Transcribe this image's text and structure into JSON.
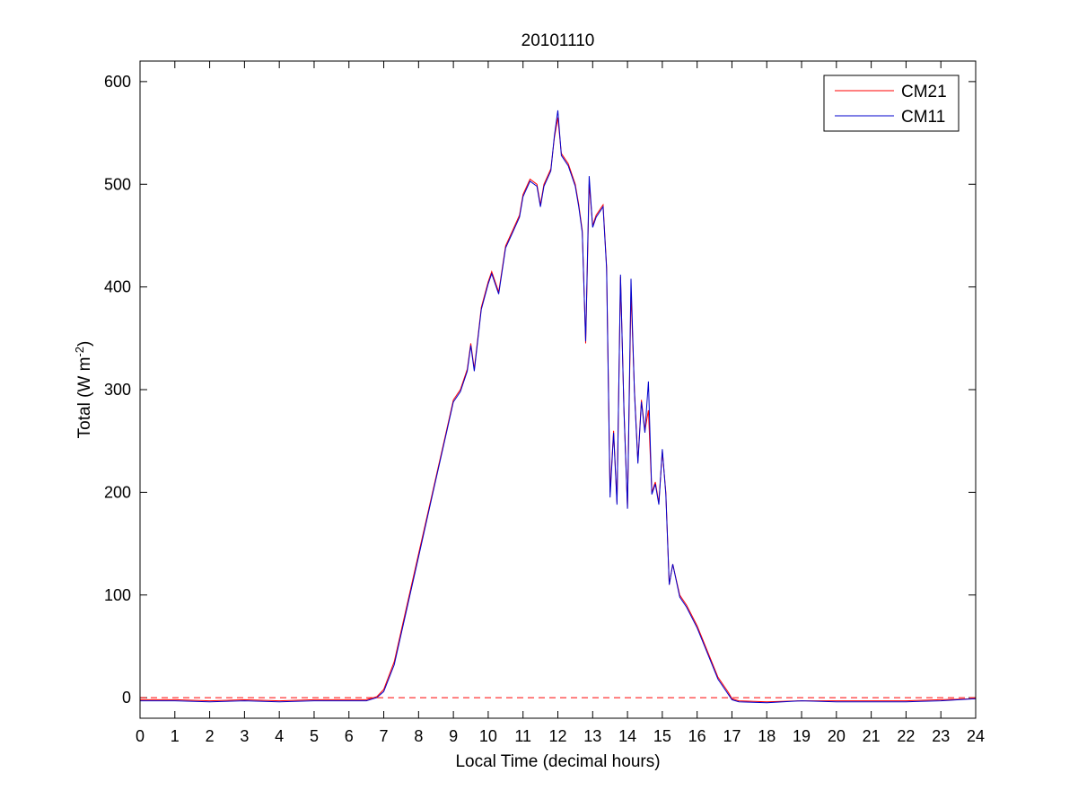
{
  "chart_data": {
    "type": "line",
    "title": "20101110",
    "xlabel": "Local Time (decimal hours)",
    "ylabel": {
      "main": "Total (W m",
      "sup": "-2",
      "close": ")"
    },
    "xlim": [
      0,
      24
    ],
    "ylim": [
      -20,
      620
    ],
    "xticks": [
      "0",
      "1",
      "2",
      "3",
      "4",
      "5",
      "6",
      "7",
      "8",
      "9",
      "10",
      "11",
      "12",
      "13",
      "14",
      "15",
      "16",
      "17",
      "18",
      "19",
      "20",
      "21",
      "22",
      "23",
      "24"
    ],
    "yticks": [
      "0",
      "100",
      "200",
      "300",
      "400",
      "500",
      "600"
    ],
    "grid": false,
    "legend_position": "top-right",
    "reference_line": {
      "y": 0,
      "style": "dashed",
      "color": "#ff0000"
    },
    "series": [
      {
        "name": "CM21",
        "color": "#ff0000",
        "points": [
          [
            0,
            -2
          ],
          [
            1,
            -2
          ],
          [
            2,
            -3
          ],
          [
            3,
            -2
          ],
          [
            4,
            -3
          ],
          [
            5,
            -2
          ],
          [
            6,
            -2
          ],
          [
            6.5,
            -2
          ],
          [
            6.8,
            1
          ],
          [
            7,
            8
          ],
          [
            7.3,
            35
          ],
          [
            7.6,
            80
          ],
          [
            8,
            140
          ],
          [
            8.4,
            200
          ],
          [
            8.8,
            260
          ],
          [
            9,
            290
          ],
          [
            9.2,
            300
          ],
          [
            9.4,
            320
          ],
          [
            9.5,
            345
          ],
          [
            9.6,
            320
          ],
          [
            9.8,
            380
          ],
          [
            10,
            405
          ],
          [
            10.1,
            415
          ],
          [
            10.3,
            395
          ],
          [
            10.5,
            440
          ],
          [
            10.7,
            455
          ],
          [
            10.9,
            470
          ],
          [
            11,
            490
          ],
          [
            11.2,
            505
          ],
          [
            11.4,
            500
          ],
          [
            11.5,
            480
          ],
          [
            11.6,
            500
          ],
          [
            11.8,
            515
          ],
          [
            11.9,
            545
          ],
          [
            12,
            565
          ],
          [
            12.1,
            530
          ],
          [
            12.3,
            520
          ],
          [
            12.5,
            500
          ],
          [
            12.6,
            480
          ],
          [
            12.7,
            455
          ],
          [
            12.8,
            345
          ],
          [
            12.9,
            500
          ],
          [
            13,
            460
          ],
          [
            13.1,
            470
          ],
          [
            13.3,
            480
          ],
          [
            13.4,
            420
          ],
          [
            13.5,
            200
          ],
          [
            13.6,
            260
          ],
          [
            13.7,
            190
          ],
          [
            13.8,
            410
          ],
          [
            13.9,
            280
          ],
          [
            14,
            185
          ],
          [
            14.1,
            395
          ],
          [
            14.2,
            300
          ],
          [
            14.3,
            230
          ],
          [
            14.4,
            290
          ],
          [
            14.5,
            260
          ],
          [
            14.6,
            280
          ],
          [
            14.7,
            200
          ],
          [
            14.8,
            210
          ],
          [
            14.9,
            190
          ],
          [
            15,
            240
          ],
          [
            15.1,
            200
          ],
          [
            15.2,
            110
          ],
          [
            15.3,
            130
          ],
          [
            15.5,
            100
          ],
          [
            15.7,
            90
          ],
          [
            16,
            70
          ],
          [
            16.3,
            45
          ],
          [
            16.6,
            20
          ],
          [
            16.9,
            5
          ],
          [
            17,
            -1
          ],
          [
            17.2,
            -3
          ],
          [
            18,
            -4
          ],
          [
            19,
            -3
          ],
          [
            20,
            -3
          ],
          [
            21,
            -3
          ],
          [
            22,
            -3
          ],
          [
            23,
            -2
          ],
          [
            24,
            -1
          ]
        ]
      },
      {
        "name": "CM11",
        "color": "#0000cc",
        "points": [
          [
            0,
            -3
          ],
          [
            1,
            -3
          ],
          [
            2,
            -4
          ],
          [
            3,
            -3
          ],
          [
            4,
            -4
          ],
          [
            5,
            -3
          ],
          [
            6,
            -3
          ],
          [
            6.5,
            -3
          ],
          [
            6.8,
            0
          ],
          [
            7,
            6
          ],
          [
            7.3,
            32
          ],
          [
            7.6,
            77
          ],
          [
            8,
            137
          ],
          [
            8.4,
            198
          ],
          [
            8.8,
            258
          ],
          [
            9,
            288
          ],
          [
            9.2,
            298
          ],
          [
            9.4,
            318
          ],
          [
            9.5,
            343
          ],
          [
            9.6,
            318
          ],
          [
            9.8,
            378
          ],
          [
            10,
            403
          ],
          [
            10.1,
            413
          ],
          [
            10.3,
            393
          ],
          [
            10.5,
            438
          ],
          [
            10.7,
            453
          ],
          [
            10.9,
            468
          ],
          [
            11,
            488
          ],
          [
            11.2,
            503
          ],
          [
            11.4,
            498
          ],
          [
            11.5,
            478
          ],
          [
            11.6,
            498
          ],
          [
            11.8,
            513
          ],
          [
            11.9,
            547
          ],
          [
            12,
            572
          ],
          [
            12.1,
            528
          ],
          [
            12.3,
            518
          ],
          [
            12.5,
            498
          ],
          [
            12.6,
            478
          ],
          [
            12.7,
            453
          ],
          [
            12.8,
            347
          ],
          [
            12.9,
            508
          ],
          [
            13,
            458
          ],
          [
            13.1,
            468
          ],
          [
            13.3,
            478
          ],
          [
            13.4,
            418
          ],
          [
            13.5,
            195
          ],
          [
            13.6,
            258
          ],
          [
            13.7,
            188
          ],
          [
            13.8,
            412
          ],
          [
            13.9,
            278
          ],
          [
            14,
            184
          ],
          [
            14.1,
            408
          ],
          [
            14.2,
            298
          ],
          [
            14.3,
            228
          ],
          [
            14.4,
            288
          ],
          [
            14.5,
            258
          ],
          [
            14.6,
            308
          ],
          [
            14.7,
            198
          ],
          [
            14.8,
            208
          ],
          [
            14.9,
            188
          ],
          [
            15,
            242
          ],
          [
            15.1,
            198
          ],
          [
            15.2,
            110
          ],
          [
            15.3,
            130
          ],
          [
            15.5,
            98
          ],
          [
            15.7,
            88
          ],
          [
            16,
            68
          ],
          [
            16.3,
            43
          ],
          [
            16.6,
            18
          ],
          [
            16.9,
            3
          ],
          [
            17,
            -2
          ],
          [
            17.2,
            -4
          ],
          [
            18,
            -5
          ],
          [
            19,
            -3
          ],
          [
            20,
            -4
          ],
          [
            21,
            -4
          ],
          [
            22,
            -4
          ],
          [
            23,
            -3
          ],
          [
            24,
            -1
          ]
        ]
      }
    ]
  }
}
